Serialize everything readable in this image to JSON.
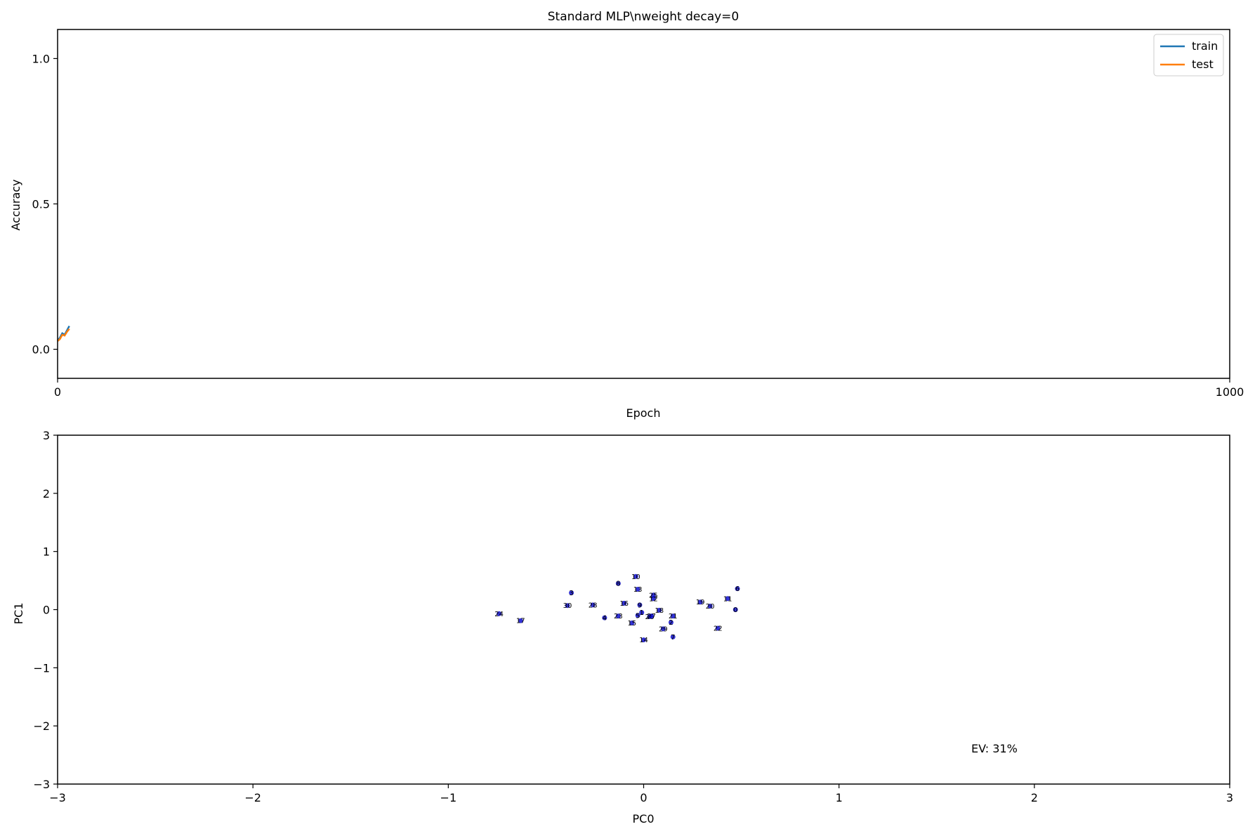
{
  "chart_data": [
    {
      "type": "line",
      "title": "Standard MLP\\nweight decay=0",
      "xlabel": "Epoch",
      "ylabel": "Accuracy",
      "xlim": [
        0,
        1000
      ],
      "ylim": [
        -0.1,
        1.1
      ],
      "xticks": [
        "0",
        "1000"
      ],
      "xtick_values": [
        0,
        1000
      ],
      "yticks": [
        "0.0",
        "0.5",
        "1.0"
      ],
      "ytick_values": [
        0.0,
        0.5,
        1.0
      ],
      "legend": {
        "position": "top-right",
        "entries": [
          "train",
          "test"
        ]
      },
      "series": [
        {
          "name": "train",
          "color": "#1f77b4",
          "x": [
            0,
            2,
            4,
            6,
            8,
            10
          ],
          "y": [
            0.03,
            0.04,
            0.055,
            0.05,
            0.065,
            0.08
          ]
        },
        {
          "name": "test",
          "color": "#ff7f0e",
          "x": [
            0,
            2,
            4,
            6,
            8,
            10
          ],
          "y": [
            0.028,
            0.035,
            0.05,
            0.047,
            0.06,
            0.07
          ]
        }
      ]
    },
    {
      "type": "scatter",
      "xlabel": "PC0",
      "ylabel": "PC1",
      "xlim": [
        -3,
        3
      ],
      "ylim": [
        -3,
        3
      ],
      "xticks": [
        "−3",
        "−2",
        "−1",
        "0",
        "1",
        "2",
        "3"
      ],
      "xtick_values": [
        -3,
        -2,
        -1,
        0,
        1,
        2,
        3
      ],
      "yticks": [
        "−3",
        "−2",
        "−1",
        "0",
        "1",
        "2",
        "3"
      ],
      "ytick_values": [
        -3,
        -2,
        -1,
        0,
        1,
        2,
        3
      ],
      "annotation": "EV: 31%",
      "point_color": "#0000cc",
      "points": [
        {
          "label": "0",
          "x": 0.47,
          "y": 0.0
        },
        {
          "label": "1",
          "x": -0.01,
          "y": -0.05
        },
        {
          "label": "2",
          "x": 0.14,
          "y": -0.22
        },
        {
          "label": "3",
          "x": -0.37,
          "y": 0.29
        },
        {
          "label": "4",
          "x": -0.2,
          "y": -0.14
        },
        {
          "label": "5",
          "x": -0.03,
          "y": -0.1
        },
        {
          "label": "6",
          "x": 0.48,
          "y": 0.36
        },
        {
          "label": "7",
          "x": 0.15,
          "y": -0.47
        },
        {
          "label": "8",
          "x": -0.13,
          "y": 0.45
        },
        {
          "label": "9",
          "x": -0.02,
          "y": 0.08
        },
        {
          "label": "10",
          "x": -0.04,
          "y": 0.57
        },
        {
          "label": "11",
          "x": 0.43,
          "y": 0.19
        },
        {
          "label": "12",
          "x": 0.05,
          "y": 0.19
        },
        {
          "label": "13",
          "x": -0.03,
          "y": 0.35
        },
        {
          "label": "14",
          "x": 0.0,
          "y": -0.52
        },
        {
          "label": "15",
          "x": -0.06,
          "y": -0.23
        },
        {
          "label": "16",
          "x": -0.1,
          "y": 0.11
        },
        {
          "label": "17",
          "x": -0.63,
          "y": -0.19
        },
        {
          "label": "18",
          "x": 0.08,
          "y": -0.01
        },
        {
          "label": "19",
          "x": 0.29,
          "y": 0.13
        },
        {
          "label": "20",
          "x": 0.34,
          "y": 0.06
        },
        {
          "label": "21",
          "x": 0.15,
          "y": -0.11
        },
        {
          "label": "22",
          "x": 0.38,
          "y": -0.32
        },
        {
          "label": "23",
          "x": -0.13,
          "y": -0.11
        },
        {
          "label": "24",
          "x": -0.74,
          "y": -0.07
        },
        {
          "label": "25",
          "x": 0.05,
          "y": 0.25
        },
        {
          "label": "26",
          "x": 0.03,
          "y": -0.12
        },
        {
          "label": "27",
          "x": 0.04,
          "y": -0.11
        },
        {
          "label": "28",
          "x": -0.26,
          "y": 0.08
        },
        {
          "label": "29",
          "x": 0.1,
          "y": -0.33
        },
        {
          "label": "30",
          "x": -0.39,
          "y": 0.07
        }
      ]
    }
  ]
}
